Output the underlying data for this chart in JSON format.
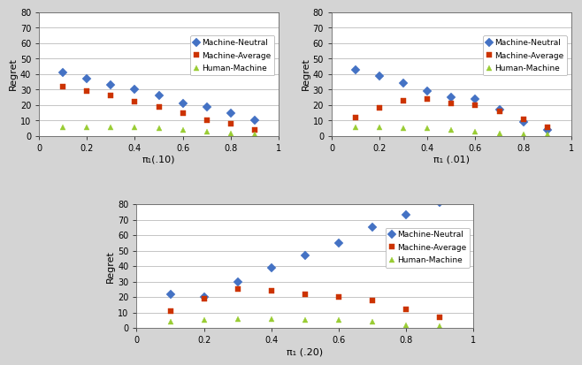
{
  "x_values": [
    0.1,
    0.2,
    0.3,
    0.4,
    0.5,
    0.6,
    0.7,
    0.8,
    0.9
  ],
  "plot1": {
    "title": "π₁(.10)",
    "machine_neutral": [
      41,
      37,
      33,
      30,
      26,
      21,
      19,
      15,
      10
    ],
    "machine_average": [
      32,
      29,
      26,
      22,
      19,
      15,
      10,
      8,
      4
    ],
    "human_machine": [
      6,
      6,
      6,
      6,
      5,
      4,
      3,
      2,
      1
    ]
  },
  "plot2": {
    "title": "π₁ (.01)",
    "machine_neutral": [
      43,
      39,
      34,
      29,
      25,
      24,
      17,
      9,
      4
    ],
    "machine_average": [
      12,
      18,
      23,
      24,
      21,
      20,
      16,
      11,
      6
    ],
    "human_machine": [
      6,
      6,
      5,
      5,
      4,
      3,
      2,
      1,
      1
    ]
  },
  "plot3": {
    "title": "π₁ (.20)",
    "machine_neutral": [
      22,
      20,
      30,
      39,
      47,
      55,
      65,
      73,
      81
    ],
    "machine_average": [
      11,
      19,
      25,
      24,
      22,
      20,
      18,
      12,
      7
    ],
    "human_machine": [
      4,
      5,
      6,
      6,
      5,
      5,
      4,
      2,
      1
    ]
  },
  "neutral_color": "#4472C4",
  "average_color": "#CC3300",
  "human_color": "#99CC33",
  "neutral_marker": "D",
  "average_marker": "s",
  "human_marker": "^",
  "marker_size": 5,
  "ylabel": "Regret",
  "ylim": [
    0,
    80
  ],
  "yticks": [
    0,
    10,
    20,
    30,
    40,
    50,
    60,
    70,
    80
  ],
  "xlim": [
    0,
    1.0
  ],
  "xticks": [
    0,
    0.2,
    0.4,
    0.6,
    0.8,
    1.0
  ],
  "xticklabels": [
    "0",
    "0.2",
    "0.4",
    "0.6",
    "0.8",
    "1"
  ],
  "legend_labels": [
    "Machine-Neutral",
    "Machine-Average",
    "Human-Machine"
  ],
  "bg_color": "#FFFFFF",
  "grid_color": "#BBBBBB",
  "fig_bg": "#D4D4D4"
}
